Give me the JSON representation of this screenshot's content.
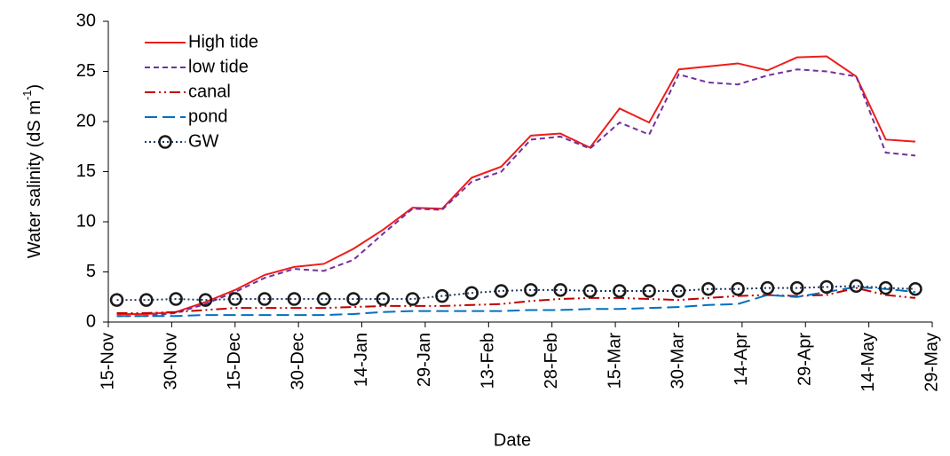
{
  "chart_data": {
    "type": "line",
    "y_label": {
      "text": "Water salinity (dS m",
      "superscript": "-1",
      "end": ")"
    },
    "x_label": "Date",
    "x": [
      "17-Nov",
      "24-Nov",
      "1-Dec",
      "8-Dec",
      "15-Dec",
      "22-Dec",
      "29-Dec",
      "5-Jan",
      "12-Jan",
      "19-Jan",
      "26-Jan",
      "2-Feb",
      "9-Feb",
      "16-Feb",
      "23-Feb",
      "2-Mar",
      "9-Mar",
      "16-Mar",
      "23-Mar",
      "30-Mar",
      "6-Apr",
      "13-Apr",
      "20-Apr",
      "27-Apr",
      "4-May",
      "11-May",
      "18-May",
      "25-May"
    ],
    "xlim": [
      "15-Nov",
      "29-May"
    ],
    "xticks": [
      "15-Nov",
      "30-Nov",
      "15-Dec",
      "30-Dec",
      "14-Jan",
      "29-Jan",
      "13-Feb",
      "28-Feb",
      "15-Mar",
      "30-Mar",
      "14-Apr",
      "29-Apr",
      "14-May",
      "29-May"
    ],
    "ylim": [
      0,
      30
    ],
    "yticks": [
      0,
      5,
      10,
      15,
      20,
      25,
      30
    ],
    "grid": false,
    "legend": "upper-left",
    "series": [
      {
        "name": "High tide",
        "color": "#ee1c1c",
        "dash": "none",
        "values": [
          0.8,
          0.8,
          1.0,
          2.0,
          3.2,
          4.7,
          5.5,
          5.8,
          7.3,
          9.2,
          11.4,
          11.3,
          14.4,
          15.5,
          18.6,
          18.8,
          17.4,
          21.3,
          19.9,
          25.2,
          25.5,
          25.8,
          25.1,
          26.4,
          26.5,
          24.5,
          18.2,
          18.0
        ]
      },
      {
        "name": "low tide",
        "color": "#7030a0",
        "dash": "6,4",
        "values": [
          0.6,
          0.6,
          0.9,
          1.8,
          3.0,
          4.4,
          5.3,
          5.1,
          6.2,
          8.8,
          11.3,
          11.2,
          14.0,
          15.0,
          18.2,
          18.5,
          17.3,
          19.9,
          18.7,
          24.7,
          23.9,
          23.7,
          24.6,
          25.2,
          25.0,
          24.5,
          16.9,
          16.6
        ]
      },
      {
        "name": "canal",
        "color": "#c00000",
        "dash": "12,4,2,4,2,4",
        "values": [
          0.9,
          0.9,
          1.0,
          1.2,
          1.4,
          1.4,
          1.4,
          1.4,
          1.5,
          1.6,
          1.6,
          1.6,
          1.7,
          1.8,
          2.1,
          2.3,
          2.4,
          2.4,
          2.3,
          2.2,
          2.4,
          2.6,
          2.7,
          2.6,
          2.7,
          3.4,
          2.7,
          2.4
        ]
      },
      {
        "name": "pond",
        "color": "#0070c0",
        "dash": "14,6",
        "values": [
          0.6,
          0.6,
          0.6,
          0.7,
          0.7,
          0.7,
          0.7,
          0.7,
          0.8,
          1.0,
          1.1,
          1.1,
          1.1,
          1.1,
          1.2,
          1.2,
          1.3,
          1.3,
          1.4,
          1.5,
          1.7,
          1.8,
          2.7,
          2.5,
          3.0,
          3.5,
          3.3,
          3.0
        ]
      },
      {
        "name": "GW",
        "color": "#1f3864",
        "dash": "2,3",
        "marker": "circle",
        "values": [
          2.2,
          2.2,
          2.3,
          2.2,
          2.3,
          2.3,
          2.3,
          2.3,
          2.3,
          2.3,
          2.3,
          2.6,
          2.9,
          3.1,
          3.2,
          3.2,
          3.1,
          3.1,
          3.1,
          3.1,
          3.3,
          3.3,
          3.4,
          3.4,
          3.5,
          3.6,
          3.4,
          3.3
        ]
      }
    ]
  }
}
